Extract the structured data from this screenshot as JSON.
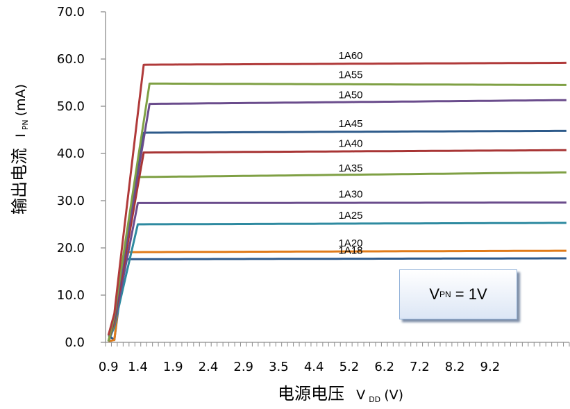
{
  "chart_data": {
    "type": "line",
    "x_tick_labels": [
      "0.9",
      "1.4",
      "1.9",
      "2.4",
      "2.9",
      "3.5",
      "4.4",
      "5.2",
      "6.2",
      "7.2",
      "8.2",
      "9.2"
    ],
    "xlabel": {
      "main": "电源电压",
      "var": "V",
      "sub": "DD",
      "unit": "(V)"
    },
    "ylabel": {
      "main": "输出电流",
      "var": "I",
      "sub": "PN",
      "unit": "(mA)"
    },
    "ylim": [
      0,
      70
    ],
    "y_tick_labels": [
      "0.0",
      "10.0",
      "20.0",
      "30.0",
      "40.0",
      "50.0",
      "60.0",
      "70.0"
    ],
    "grid": false,
    "annotation": {
      "var": "V",
      "sub": "PN",
      "rest": "= 1V"
    },
    "series": [
      {
        "name": "1A18",
        "color": "#2e5a8c",
        "saturation": 17.6,
        "end": 17.8,
        "knee_index": 3
      },
      {
        "name": "1A20",
        "color": "#e07b1a",
        "saturation": 19.1,
        "end": 19.4,
        "knee_index": 3
      },
      {
        "name": "1A25",
        "color": "#2e8aa0",
        "saturation": 25.0,
        "end": 25.3,
        "knee_index": 5
      },
      {
        "name": "1A30",
        "color": "#6a4c8c",
        "saturation": 29.5,
        "end": 29.6,
        "knee_index": 5
      },
      {
        "name": "1A35",
        "color": "#7fa044",
        "saturation": 35.0,
        "end": 36.0,
        "knee_index": 5
      },
      {
        "name": "1A40",
        "color": "#a83535",
        "saturation": 40.2,
        "end": 40.7,
        "knee_index": 6
      },
      {
        "name": "1A45",
        "color": "#2d5a8a",
        "saturation": 44.4,
        "end": 44.8,
        "knee_index": 6
      },
      {
        "name": "1A50",
        "color": "#6a4c8c",
        "saturation": 50.5,
        "end": 51.3,
        "knee_index": 7
      },
      {
        "name": "1A55",
        "color": "#7fa044",
        "saturation": 54.8,
        "end": 54.5,
        "knee_index": 7
      },
      {
        "name": "1A60",
        "color": "#b03a3a",
        "saturation": 58.8,
        "end": 59.2,
        "knee_index": 6
      }
    ]
  }
}
